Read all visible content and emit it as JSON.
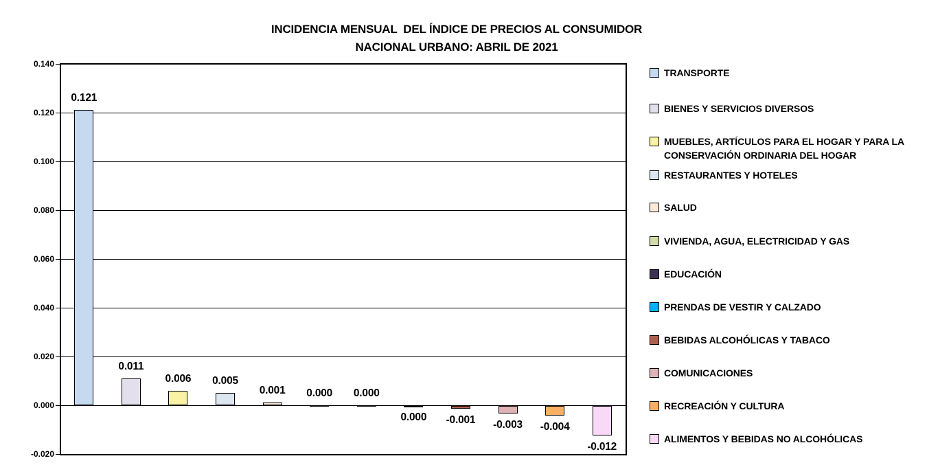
{
  "title": {
    "line1": "INCIDENCIA MENSUAL  DEL ÍNDICE DE PRECIOS AL CONSUMIDOR",
    "line2": "NACIONAL URBANO: ABRIL DE 2021"
  },
  "chart_data": {
    "type": "bar",
    "title": "INCIDENCIA MENSUAL DEL ÍNDICE DE PRECIOS AL CONSUMIDOR NACIONAL URBANO: ABRIL DE 2021",
    "categories": [
      "TRANSPORTE",
      "BIENES Y SERVICIOS DIVERSOS",
      "MUEBLES, ARTÍCULOS PARA EL HOGAR Y PARA LA CONSERVACIÓN ORDINARIA DEL HOGAR",
      "RESTAURANTES Y HOTELES",
      "SALUD",
      "VIVIENDA, AGUA, ELECTRICIDAD Y GAS",
      "EDUCACIÓN",
      "PRENDAS DE VESTIR Y CALZADO",
      "BEBIDAS ALCOHÓLICAS Y TABACO",
      "COMUNICACIONES",
      "RECREACIÓN Y CULTURA",
      "ALIMENTOS Y BEBIDAS NO ALCOHÓLICAS"
    ],
    "values": [
      0.121,
      0.011,
      0.006,
      0.005,
      0.001,
      0.0,
      0.0,
      0.0,
      -0.001,
      -0.003,
      -0.004,
      -0.012
    ],
    "value_labels": [
      "0.121",
      "0.011",
      "0.006",
      "0.005",
      "0.001",
      "0.000",
      "0.000",
      "0.000",
      "-0.001",
      "-0.003",
      "-0.004",
      "-0.012"
    ],
    "label_below_axis": [
      false,
      false,
      false,
      false,
      false,
      false,
      false,
      true,
      true,
      true,
      true,
      true
    ],
    "colors": [
      "#C5D9F1",
      "#E4DFEC",
      "#FAF3A6",
      "#DCE6F1",
      "#FDEADA",
      "#CFDCA8",
      "#3E3151",
      "#00B0F0",
      "#B05F4F",
      "#DFB2B5",
      "#FAAF63",
      "#FAD9F8"
    ],
    "ylim": [
      -0.02,
      0.14
    ],
    "ytick_interval": 0.02,
    "ytick_labels": [
      "0.140",
      "0.120",
      "0.100",
      "0.080",
      "0.060",
      "0.040",
      "0.020",
      "0.000",
      "-0.020"
    ],
    "grid": true,
    "legend_position": "right",
    "xlabel": "",
    "ylabel": ""
  }
}
